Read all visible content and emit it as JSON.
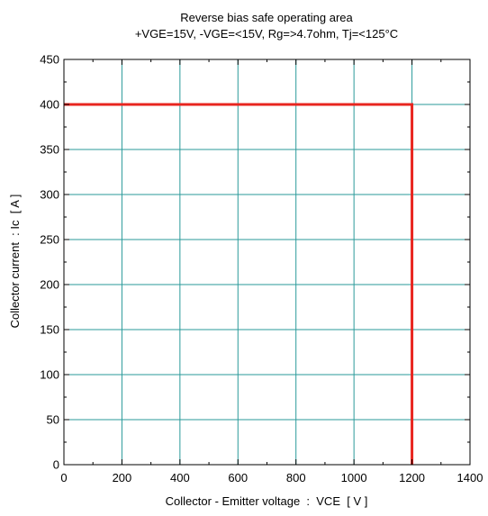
{
  "chart_data": {
    "type": "line",
    "title": "Reverse bias safe operating area",
    "subtitle": "+VGE=15V, -VGE=<15V, Rg=>4.7ohm, Tj=<125°C",
    "xlabel": "Collector - Emitter voltage  :  VCE  [ V ]",
    "ylabel": "Collector current  : Ic  [ A ]",
    "xlim": [
      0,
      1400
    ],
    "ylim": [
      0,
      450
    ],
    "xticks": [
      0,
      200,
      400,
      600,
      800,
      1000,
      1200,
      1400
    ],
    "yticks": [
      0,
      50,
      100,
      150,
      200,
      250,
      300,
      350,
      400,
      450
    ],
    "grid": true,
    "series": [
      {
        "color": "#e8251f",
        "x": [
          0,
          1200,
          1200
        ],
        "y": [
          400,
          400,
          0
        ]
      }
    ],
    "grid_color": "#2a9a9a"
  }
}
